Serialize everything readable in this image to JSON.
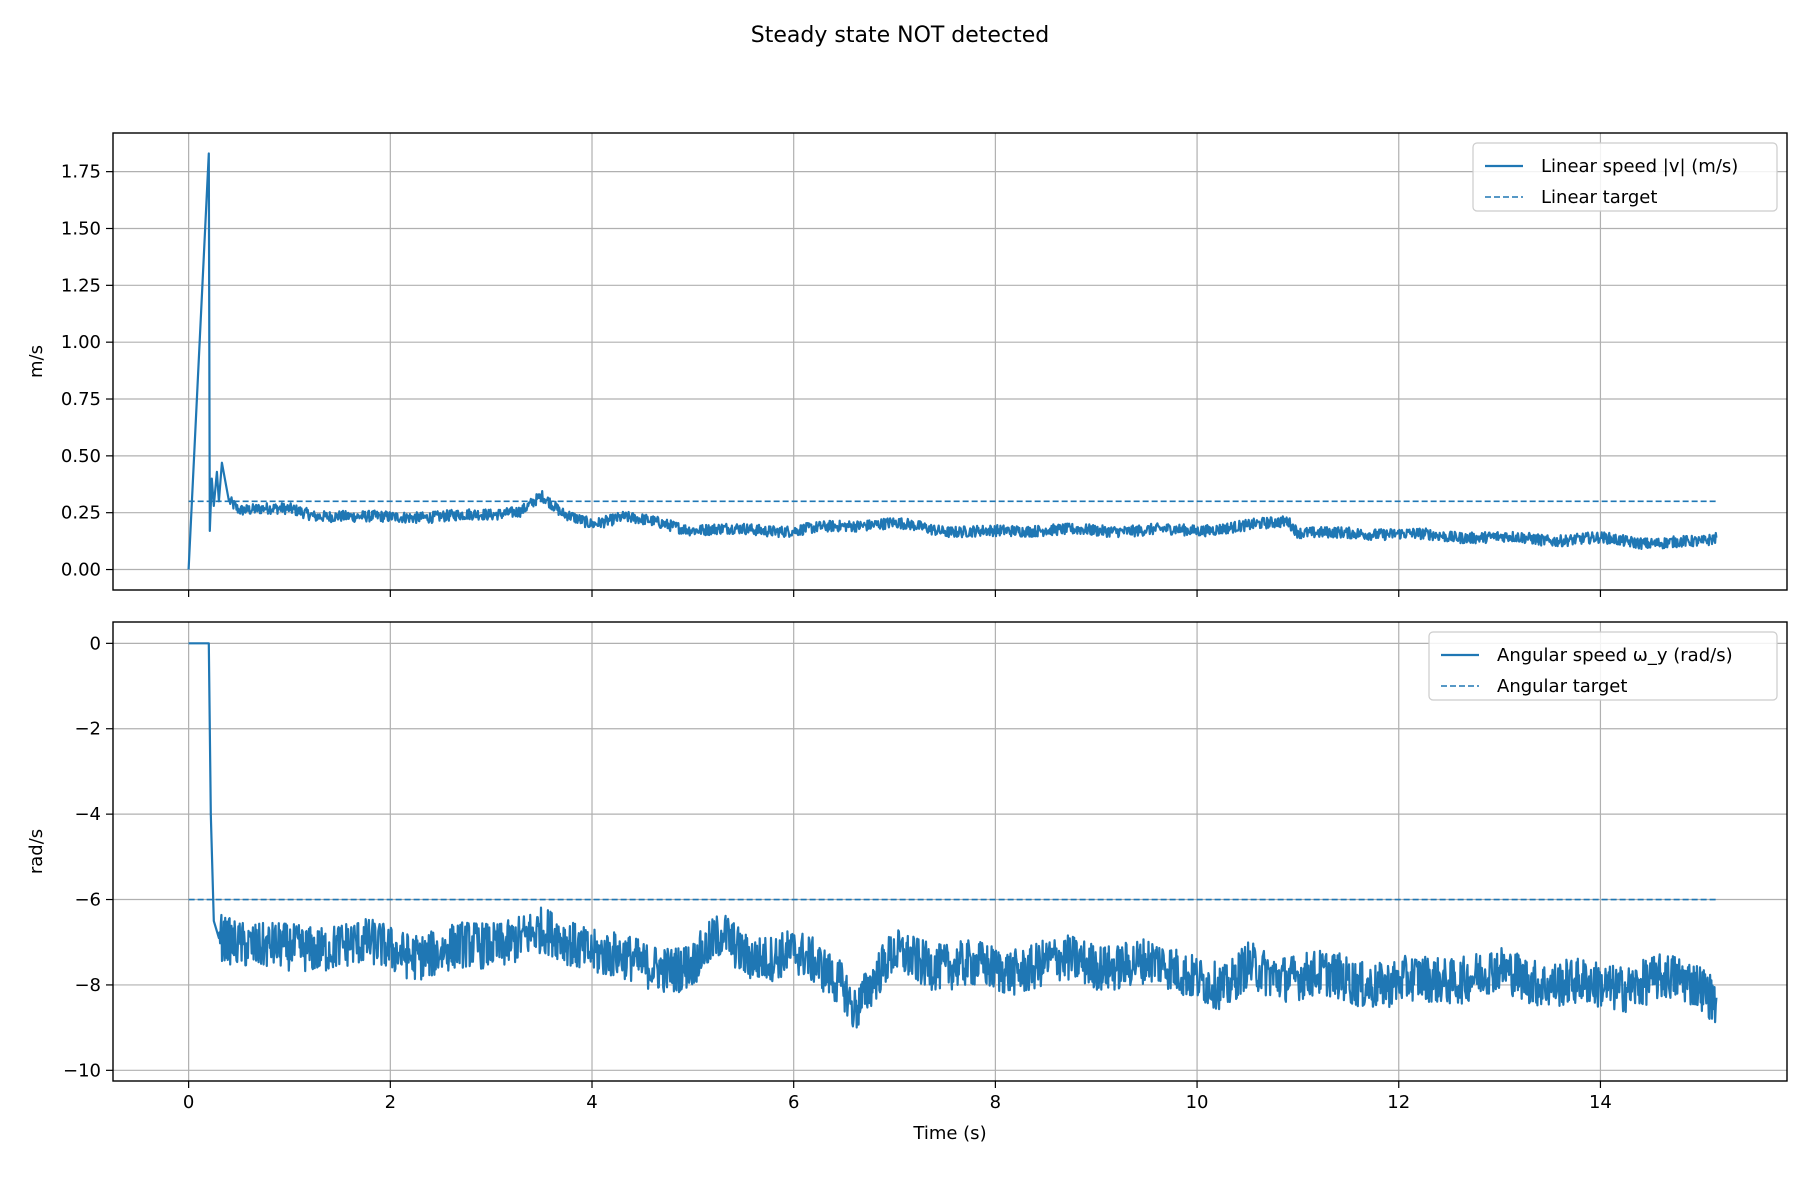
{
  "suptitle": "Steady state NOT detected",
  "colors": {
    "series": "#1f77b4",
    "grid": "#b0b0b0",
    "axes": "#000000"
  },
  "chart_data": [
    {
      "type": "line",
      "ylabel": "m/s",
      "xlabel": "",
      "xlim": [
        -0.75,
        15.85
      ],
      "ylim": [
        -0.09,
        1.92
      ],
      "xticks": [
        0,
        2,
        4,
        6,
        8,
        10,
        12,
        14
      ],
      "yticks": [
        0.0,
        0.25,
        0.5,
        0.75,
        1.0,
        1.25,
        1.5,
        1.75
      ],
      "ytick_labels": [
        "0.00",
        "0.25",
        "0.50",
        "0.75",
        "1.00",
        "1.25",
        "1.50",
        "1.75"
      ],
      "grid": true,
      "legend_position": "top-right",
      "series": [
        {
          "name": "Linear speed |v| (m/s)",
          "style": "solid",
          "x": [
            0,
            0.2,
            0.21,
            0.23,
            0.25,
            0.28,
            0.3,
            0.33,
            0.4,
            0.5,
            0.75,
            1.0,
            1.25,
            1.5,
            2.0,
            2.5,
            3.0,
            3.3,
            3.5,
            3.7,
            4.0,
            4.3,
            4.6,
            5.0,
            5.5,
            6.0,
            6.5,
            7.0,
            7.5,
            8.0,
            8.5,
            9.0,
            9.5,
            10.0,
            10.5,
            10.9,
            11.0,
            11.5,
            12.0,
            12.5,
            13.0,
            13.5,
            14.0,
            14.5,
            15.0,
            15.15
          ],
          "y": [
            0.0,
            1.83,
            0.17,
            0.4,
            0.28,
            0.43,
            0.3,
            0.47,
            0.3,
            0.26,
            0.27,
            0.26,
            0.23,
            0.24,
            0.23,
            0.24,
            0.24,
            0.26,
            0.32,
            0.24,
            0.2,
            0.23,
            0.21,
            0.18,
            0.18,
            0.17,
            0.19,
            0.2,
            0.17,
            0.17,
            0.18,
            0.17,
            0.17,
            0.17,
            0.19,
            0.22,
            0.17,
            0.16,
            0.16,
            0.14,
            0.14,
            0.13,
            0.14,
            0.12,
            0.12,
            0.14
          ],
          "noise_amplitude": 0.025
        },
        {
          "name": "Linear target",
          "style": "dashed",
          "x": [
            0,
            15.15
          ],
          "y": [
            0.3,
            0.3
          ]
        }
      ]
    },
    {
      "type": "line",
      "ylabel": "rad/s",
      "xlabel": "Time (s)",
      "xlim": [
        -0.75,
        15.85
      ],
      "ylim": [
        -10.25,
        0.5
      ],
      "xticks": [
        0,
        2,
        4,
        6,
        8,
        10,
        12,
        14
      ],
      "yticks": [
        0,
        -2,
        -4,
        -6,
        -8,
        -10
      ],
      "ytick_labels": [
        "0",
        "−2",
        "−4",
        "−6",
        "−8",
        "−10"
      ],
      "grid": true,
      "legend_position": "top-right",
      "series": [
        {
          "name": "Angular speed ω_y (rad/s)",
          "style": "solid",
          "x": [
            0,
            0.2,
            0.22,
            0.25,
            0.3,
            0.5,
            0.75,
            1.0,
            1.5,
            2.0,
            2.5,
            3.0,
            3.5,
            4.0,
            4.5,
            5.0,
            5.3,
            5.5,
            6.0,
            6.5,
            6.6,
            7.0,
            7.5,
            8.0,
            8.5,
            9.0,
            9.5,
            10.0,
            10.3,
            10.5,
            11.0,
            11.5,
            12.0,
            12.5,
            13.0,
            13.5,
            14.0,
            14.5,
            15.0,
            15.15
          ],
          "y": [
            0,
            0,
            -4.0,
            -6.5,
            -6.9,
            -7.0,
            -7.2,
            -7.3,
            -7.0,
            -7.1,
            -7.2,
            -7.0,
            -6.9,
            -7.2,
            -7.6,
            -7.4,
            -6.8,
            -7.2,
            -7.3,
            -8.0,
            -8.6,
            -7.4,
            -7.5,
            -7.6,
            -7.4,
            -7.5,
            -7.6,
            -7.8,
            -8.2,
            -7.6,
            -7.7,
            -7.8,
            -8.0,
            -7.9,
            -7.8,
            -7.9,
            -8.0,
            -7.8,
            -8.0,
            -8.3
          ],
          "noise_amplitude": 0.55
        },
        {
          "name": "Angular target",
          "style": "dashed",
          "x": [
            0,
            15.15
          ],
          "y": [
            -6.0,
            -6.0
          ]
        }
      ]
    }
  ]
}
